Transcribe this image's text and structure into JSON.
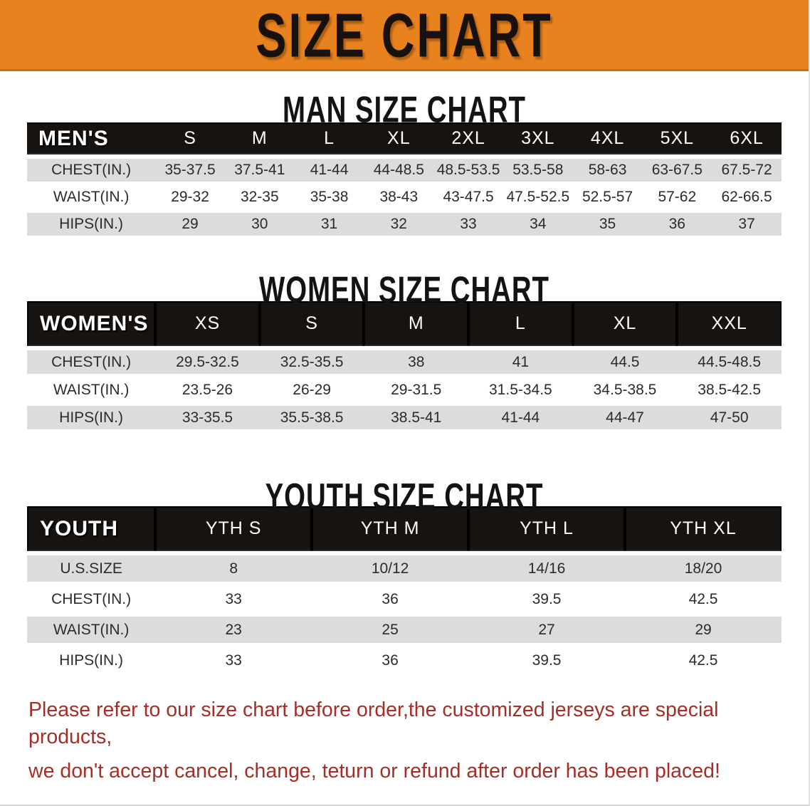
{
  "banner": {
    "title": "SIZE CHART",
    "bg_color": "#E8821F"
  },
  "sections": [
    {
      "id": "man",
      "title": "MAN SIZE CHART",
      "group_label": "MEN'S",
      "columns": [
        "S",
        "M",
        "L",
        "XL",
        "2XL",
        "3XL",
        "4XL",
        "5XL",
        "6XL"
      ],
      "rows": [
        {
          "label": "CHEST(IN.)",
          "values": [
            "35-37.5",
            "37.5-41",
            "41-44",
            "44-48.5",
            "48.5-53.5",
            "53.5-58",
            "58-63",
            "63-67.5",
            "67.5-72"
          ]
        },
        {
          "label": "WAIST(IN.)",
          "values": [
            "29-32",
            "32-35",
            "35-38",
            "38-43",
            "43-47.5",
            "47.5-52.5",
            "52.5-57",
            "57-62",
            "62-66.5"
          ]
        },
        {
          "label": "HIPS(IN.)",
          "values": [
            "29",
            "30",
            "31",
            "32",
            "33",
            "34",
            "35",
            "36",
            "37"
          ]
        }
      ]
    },
    {
      "id": "women",
      "title": "WOMEN SIZE CHART",
      "group_label": "WOMEN'S",
      "columns": [
        "XS",
        "S",
        "M",
        "L",
        "XL",
        "XXL"
      ],
      "rows": [
        {
          "label": "CHEST(IN.)",
          "values": [
            "29.5-32.5",
            "32.5-35.5",
            "38",
            "41",
            "44.5",
            "44.5-48.5"
          ]
        },
        {
          "label": "WAIST(IN.)",
          "values": [
            "23.5-26",
            "26-29",
            "29-31.5",
            "31.5-34.5",
            "34.5-38.5",
            "38.5-42.5"
          ]
        },
        {
          "label": "HIPS(IN.)",
          "values": [
            "33-35.5",
            "35.5-38.5",
            "38.5-41",
            "41-44",
            "44-47",
            "47-50"
          ]
        }
      ]
    },
    {
      "id": "youth",
      "title": "YOUTH SIZE CHART",
      "group_label": "YOUTH",
      "columns": [
        "YTH S",
        "YTH M",
        "YTH L",
        "YTH XL"
      ],
      "rows": [
        {
          "label": "U.S.SIZE",
          "values": [
            "8",
            "10/12",
            "14/16",
            "18/20"
          ]
        },
        {
          "label": "CHEST(IN.)",
          "values": [
            "33",
            "36",
            "39.5",
            "42.5"
          ]
        },
        {
          "label": "WAIST(IN.)",
          "values": [
            "23",
            "25",
            "27",
            "29"
          ]
        },
        {
          "label": "HIPS(IN.)",
          "values": [
            "33",
            "36",
            "39.5",
            "42.5"
          ]
        }
      ]
    }
  ],
  "footer": {
    "lines": [
      "Please refer to our size chart before order,the customized jerseys are special products,",
      "we don't accept cancel, change, teturn or refund after order has been placed!"
    ],
    "text_color": "#A62E26"
  }
}
